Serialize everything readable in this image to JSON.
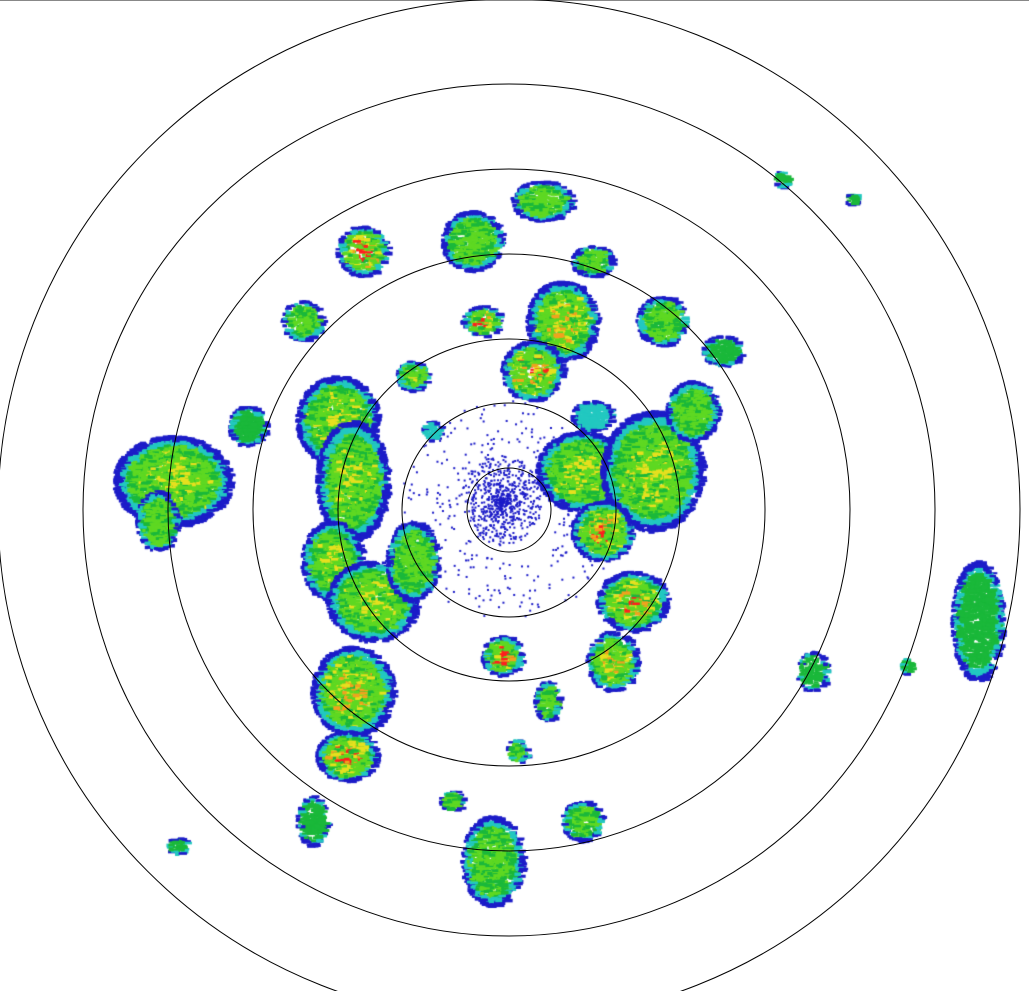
{
  "radar": {
    "view": "reflectivity-ppi",
    "range_ring_count": 7,
    "ring_color": "#000000",
    "background": "#ffffff",
    "echo_palette": [
      "#1c1cc8",
      "#22c8c0",
      "#1ab83a",
      "#5ed822",
      "#e6e01e",
      "#f0a21e",
      "#ff1e1e"
    ]
  }
}
